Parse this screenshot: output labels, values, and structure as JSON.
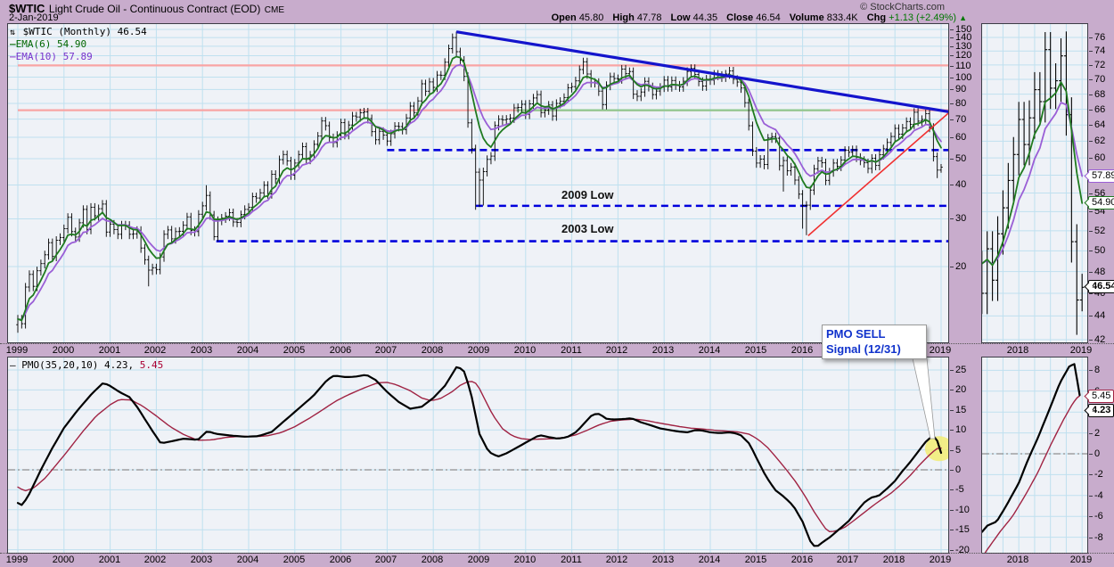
{
  "header": {
    "symbol": "$WTIC",
    "title": "Light Crude Oil - Continuous Contract (EOD)",
    "exchange": "CME",
    "copyright": "© StockCharts.com",
    "date": "2-Jan-2019",
    "quote": {
      "open_label": "Open",
      "open": "45.80",
      "high_label": "High",
      "high": "47.78",
      "low_label": "Low",
      "low": "44.35",
      "close_label": "Close",
      "close": "46.54",
      "volume_label": "Volume",
      "volume": "833.4K",
      "chg_label": "Chg",
      "chg": "+1.13 (+2.49%)",
      "chg_dir": "▲"
    }
  },
  "legend_main": {
    "icon": "⇅",
    "series": "$WTIC (Monthly)",
    "value": "46.54",
    "ema6": "EMA(6) 54.90",
    "ema10": "EMA(10) 57.89"
  },
  "legend_pmo": {
    "label": "— PMO(35,20,10)",
    "value": "4.23,",
    "signal": "5.45"
  },
  "annotations": {
    "low2009": "2009 Low",
    "low2003": "2003 Low",
    "pmo_sell_line1": "PMO SELL",
    "pmo_sell_line2": "Signal (12/31)"
  },
  "callouts": {
    "ema10": "57.89",
    "ema6": "54.90",
    "close": "46.54",
    "pmo_signal": "5.45",
    "pmo": "4.23"
  },
  "colors": {
    "page_bg": "#C8ACCC",
    "plot_bg": "#EFF2F7",
    "grid": "#BFE0EF",
    "bars": "#000000",
    "ema6": "#1F7A1F",
    "ema10": "#9A5FD6",
    "trend_blue": "#1414CC",
    "support_dashed_blue": "#0000DD",
    "resistance_pink": "#F9A4A4",
    "support_green": "#8FC98F",
    "trend_red": "#F03030",
    "pmo_line": "#000000",
    "pmo_signal": "#A02343",
    "zero_line": "#777777",
    "signal_highlight": "#F2EC6A",
    "callout_text_blue": "#1133CC",
    "chg_green": "#007700"
  },
  "axes": {
    "main_price_ticks": [
      150,
      140,
      130,
      120,
      110,
      100,
      90,
      80,
      70,
      60,
      50,
      40,
      30,
      20
    ],
    "pmo_ticks": [
      25,
      20,
      15,
      10,
      5,
      0,
      -5,
      -10,
      -15,
      -20
    ],
    "mini_price_ticks": [
      76,
      74,
      72,
      70,
      68,
      66,
      64,
      62,
      60,
      58,
      56,
      54,
      52,
      50,
      48,
      46,
      44,
      42
    ],
    "mini_pmo_ticks": [
      8,
      6,
      4,
      2,
      0,
      -2,
      -4,
      -6,
      -8
    ],
    "years_main": [
      "1999",
      "2000",
      "2001",
      "2002",
      "2003",
      "2004",
      "2005",
      "2006",
      "2007",
      "2008",
      "2009",
      "2010",
      "2011",
      "2012",
      "2013",
      "2014",
      "2015",
      "2016",
      "2017",
      "2018",
      "2019"
    ],
    "years_mini": [
      "2018",
      "2019"
    ]
  },
  "chart_data": {
    "type": "ohlc+line",
    "title": "$WTIC Light Crude Oil - Continuous Contract (EOD) CME, Monthly, 1999-2019, log scale",
    "price": {
      "start": "1999-01",
      "interval": "monthly",
      "log_scale": true,
      "ylim": [
        10.5,
        152
      ],
      "xlim": [
        1999.0,
        2019.3
      ],
      "last_bar": {
        "open": 45.8,
        "high": 47.78,
        "low": 44.35,
        "close": 46.54
      },
      "closes": [
        12.8,
        12.3,
        16.8,
        18.7,
        16.9,
        19.3,
        20.5,
        22.1,
        24.5,
        21.8,
        25.0,
        25.6,
        27.6,
        30.4,
        26.9,
        25.7,
        29.0,
        32.5,
        27.4,
        33.1,
        30.8,
        32.7,
        34.0,
        26.8,
        28.7,
        27.4,
        26.3,
        28.5,
        28.4,
        26.3,
        26.4,
        27.2,
        23.4,
        21.2,
        19.4,
        19.8,
        19.5,
        21.7,
        26.3,
        27.3,
        25.3,
        26.9,
        27.0,
        28.4,
        30.5,
        27.2,
        26.9,
        31.2,
        33.5,
        36.6,
        31.0,
        25.8,
        29.6,
        30.2,
        30.7,
        31.6,
        29.2,
        29.1,
        31.1,
        32.5,
        33.1,
        36.2,
        35.8,
        37.4,
        39.9,
        37.1,
        43.8,
        42.1,
        49.6,
        51.8,
        49.1,
        43.5,
        48.2,
        51.8,
        55.4,
        49.7,
        51.6,
        56.5,
        60.6,
        68.9,
        66.2,
        59.8,
        57.3,
        61.0,
        67.9,
        61.4,
        66.6,
        71.9,
        71.3,
        73.9,
        74.4,
        70.3,
        62.9,
        58.7,
        63.1,
        61.1,
        58.1,
        61.8,
        65.9,
        65.7,
        64.0,
        70.7,
        78.2,
        74.0,
        81.7,
        94.5,
        88.7,
        96.0,
        91.7,
        101.8,
        101.6,
        113.5,
        127.4,
        140.0,
        124.1,
        115.5,
        100.6,
        67.8,
        54.4,
        44.6,
        41.7,
        44.8,
        49.7,
        51.1,
        66.3,
        69.9,
        69.5,
        70.0,
        70.6,
        77.0,
        77.3,
        79.4,
        72.9,
        79.7,
        83.8,
        86.2,
        74.0,
        75.6,
        78.9,
        71.9,
        80.0,
        81.4,
        84.1,
        91.4,
        92.2,
        96.9,
        106.7,
        113.9,
        102.7,
        95.4,
        95.7,
        88.8,
        79.2,
        93.2,
        100.4,
        98.8,
        98.5,
        107.1,
        103.0,
        104.9,
        86.5,
        85.0,
        88.1,
        96.5,
        92.2,
        86.2,
        88.9,
        91.8,
        97.5,
        92.1,
        97.2,
        93.5,
        92.0,
        96.6,
        105.0,
        107.7,
        102.3,
        96.4,
        92.7,
        98.4,
        97.5,
        102.6,
        101.6,
        100.0,
        102.7,
        105.4,
        98.2,
        95.9,
        91.2,
        80.5,
        66.2,
        53.3,
        48.2,
        49.8,
        47.6,
        59.6,
        60.3,
        59.5,
        47.1,
        49.2,
        45.1,
        46.6,
        41.7,
        37.0,
        33.6,
        33.7,
        38.3,
        45.9,
        49.1,
        48.3,
        41.6,
        44.7,
        48.2,
        46.9,
        49.4,
        53.7,
        52.8,
        54.0,
        50.6,
        49.3,
        48.3,
        46.0,
        50.2,
        47.2,
        51.7,
        54.4,
        57.4,
        60.4,
        64.7,
        61.6,
        64.9,
        68.6,
        67.0,
        74.2,
        68.8,
        69.8,
        73.3,
        65.3,
        50.9,
        45.4,
        46.54
      ],
      "first_open": 12.2,
      "hl_overrides": {
        "1999-01": {
          "l": 11.4
        },
        "2001-11": {
          "l": 16.9
        },
        "2003-02": {
          "h": 39.9
        },
        "2003-04": {
          "l": 25.0
        },
        "2008-07": {
          "h": 147.3
        },
        "2008-12": {
          "l": 32.4
        },
        "2009-01": {
          "l": 33.2
        },
        "2009-02": {
          "l": 33.6
        },
        "2015-08": {
          "l": 37.8
        },
        "2016-01": {
          "l": 27.6
        },
        "2016-02": {
          "l": 26.1
        },
        "2018-10": {
          "h": 76.9
        },
        "2018-12": {
          "l": 42.4
        },
        "2019-01": {
          "h": 47.8,
          "l": 44.4
        }
      },
      "ema_periods": [
        6,
        10
      ],
      "overlays": {
        "resistance_lines": [
          {
            "level": 110.5,
            "from": 1999.0,
            "to": 2019.3,
            "style": "pink"
          },
          {
            "level": 75.5,
            "from": 1999.0,
            "to": 2019.3,
            "style": "pink"
          },
          {
            "level": 75.5,
            "from": 2009.8,
            "to": 2016.6,
            "style": "green"
          }
        ],
        "support_dashed": [
          {
            "level": 53.8,
            "from": 2007.0,
            "to": 2019.3
          },
          {
            "level": 33.5,
            "from": 2008.92,
            "to": 2019.3
          },
          {
            "level": 24.8,
            "from": 2003.3,
            "to": 2019.3
          }
        ],
        "trend_blue": {
          "t1": 2008.5,
          "p1": 147.0,
          "t2": 2019.7,
          "p2": 72.0
        },
        "trend_red": {
          "t1": 2016.12,
          "p1": 26.0,
          "t2": 2019.25,
          "p2": 76.0
        }
      }
    },
    "pmo": {
      "params": [
        35,
        20,
        10
      ],
      "current": 4.23,
      "signal_current": 5.45,
      "ylim": [
        -22,
        27
      ],
      "zero_line": 0,
      "pmo_knots": [
        [
          1999.0,
          -8.3
        ],
        [
          1999.1,
          -8.9
        ],
        [
          1999.25,
          -6
        ],
        [
          1999.5,
          0
        ],
        [
          1999.75,
          5.5
        ],
        [
          2000.0,
          10.5
        ],
        [
          2000.3,
          15
        ],
        [
          2000.6,
          19
        ],
        [
          2000.85,
          21.8
        ],
        [
          2001.0,
          21
        ],
        [
          2001.2,
          19.5
        ],
        [
          2001.42,
          18.2
        ],
        [
          2001.6,
          15.5
        ],
        [
          2001.9,
          10
        ],
        [
          2002.1,
          6.6
        ],
        [
          2002.35,
          7.2
        ],
        [
          2002.6,
          7.8
        ],
        [
          2002.9,
          7.5
        ],
        [
          2003.1,
          9.7
        ],
        [
          2003.3,
          9.0
        ],
        [
          2003.6,
          8.6
        ],
        [
          2003.9,
          8.3
        ],
        [
          2004.2,
          8.4
        ],
        [
          2004.5,
          9.5
        ],
        [
          2004.8,
          12.5
        ],
        [
          2005.1,
          15.5
        ],
        [
          2005.4,
          18.5
        ],
        [
          2005.7,
          22.5
        ],
        [
          2005.85,
          23.6
        ],
        [
          2006.1,
          23.2
        ],
        [
          2006.3,
          23.3
        ],
        [
          2006.55,
          23.8
        ],
        [
          2006.75,
          22.5
        ],
        [
          2007.0,
          19.5
        ],
        [
          2007.25,
          17
        ],
        [
          2007.5,
          15.3
        ],
        [
          2007.75,
          15.8
        ],
        [
          2008.0,
          18
        ],
        [
          2008.25,
          21
        ],
        [
          2008.5,
          25.7
        ],
        [
          2008.65,
          25.2
        ],
        [
          2008.8,
          20
        ],
        [
          2009.0,
          9
        ],
        [
          2009.2,
          4.5
        ],
        [
          2009.4,
          3.3
        ],
        [
          2009.6,
          4.2
        ],
        [
          2009.8,
          5.5
        ],
        [
          2010.0,
          6.8
        ],
        [
          2010.3,
          8.7
        ],
        [
          2010.5,
          8.2
        ],
        [
          2010.7,
          7.8
        ],
        [
          2010.9,
          8.2
        ],
        [
          2011.1,
          9.5
        ],
        [
          2011.3,
          12
        ],
        [
          2011.45,
          13.9
        ],
        [
          2011.6,
          14
        ],
        [
          2011.75,
          12.8
        ],
        [
          2011.9,
          12.6
        ],
        [
          2012.1,
          12.7
        ],
        [
          2012.3,
          12.9
        ],
        [
          2012.5,
          11.9
        ],
        [
          2012.7,
          11.2
        ],
        [
          2012.9,
          10.4
        ],
        [
          2013.1,
          10
        ],
        [
          2013.3,
          9.6
        ],
        [
          2013.5,
          9.4
        ],
        [
          2013.7,
          10
        ],
        [
          2013.85,
          9.8
        ],
        [
          2014.0,
          9.4
        ],
        [
          2014.2,
          9.2
        ],
        [
          2014.45,
          9.4
        ],
        [
          2014.65,
          8.8
        ],
        [
          2014.85,
          6.5
        ],
        [
          2015.0,
          3
        ],
        [
          2015.2,
          -1.5
        ],
        [
          2015.4,
          -5
        ],
        [
          2015.6,
          -6.8
        ],
        [
          2015.8,
          -9
        ],
        [
          2016.0,
          -13
        ],
        [
          2016.2,
          -18.8
        ],
        [
          2016.3,
          -19.3
        ],
        [
          2016.45,
          -18
        ],
        [
          2016.6,
          -16.8
        ],
        [
          2016.8,
          -14.8
        ],
        [
          2017.0,
          -12.8
        ],
        [
          2017.2,
          -10
        ],
        [
          2017.35,
          -8
        ],
        [
          2017.5,
          -6.9
        ],
        [
          2017.65,
          -6.5
        ],
        [
          2017.8,
          -5
        ],
        [
          2018.0,
          -2.8
        ],
        [
          2018.15,
          -0.5
        ],
        [
          2018.3,
          1.5
        ],
        [
          2018.5,
          4.5
        ],
        [
          2018.65,
          6.8
        ],
        [
          2018.8,
          8.4
        ],
        [
          2018.88,
          8.6
        ],
        [
          2019.0,
          4.23
        ]
      ],
      "signal_knots": [
        [
          1999.0,
          -4.3
        ],
        [
          1999.15,
          -5.3
        ],
        [
          1999.35,
          -4.5
        ],
        [
          1999.6,
          -2
        ],
        [
          1999.85,
          1.5
        ],
        [
          2000.1,
          5
        ],
        [
          2000.4,
          9.5
        ],
        [
          2000.7,
          13.5
        ],
        [
          2001.0,
          16.3
        ],
        [
          2001.2,
          17.6
        ],
        [
          2001.45,
          17.5
        ],
        [
          2001.7,
          16
        ],
        [
          2002.0,
          13.5
        ],
        [
          2002.3,
          10.8
        ],
        [
          2002.6,
          8.8
        ],
        [
          2002.9,
          7.4
        ],
        [
          2003.2,
          7.5
        ],
        [
          2003.5,
          8.1
        ],
        [
          2003.8,
          8.4
        ],
        [
          2004.1,
          8.3
        ],
        [
          2004.4,
          8.5
        ],
        [
          2004.7,
          9.3
        ],
        [
          2005.0,
          10.8
        ],
        [
          2005.3,
          12.8
        ],
        [
          2005.6,
          15
        ],
        [
          2005.9,
          17.3
        ],
        [
          2006.2,
          19
        ],
        [
          2006.5,
          20.5
        ],
        [
          2006.8,
          21.8
        ],
        [
          2007.0,
          21.9
        ],
        [
          2007.2,
          21.3
        ],
        [
          2007.5,
          19.8
        ],
        [
          2007.75,
          18
        ],
        [
          2007.95,
          17.3
        ],
        [
          2008.15,
          17.8
        ],
        [
          2008.4,
          19.5
        ],
        [
          2008.6,
          21.3
        ],
        [
          2008.8,
          22.3
        ],
        [
          2008.95,
          21.5
        ],
        [
          2009.1,
          18
        ],
        [
          2009.3,
          13.5
        ],
        [
          2009.5,
          10.3
        ],
        [
          2009.7,
          8.6
        ],
        [
          2009.9,
          7.8
        ],
        [
          2010.1,
          7.6
        ],
        [
          2010.35,
          7.7
        ],
        [
          2010.6,
          7.8
        ],
        [
          2010.85,
          8.1
        ],
        [
          2011.1,
          8.8
        ],
        [
          2011.35,
          10
        ],
        [
          2011.6,
          11.3
        ],
        [
          2011.85,
          12.2
        ],
        [
          2012.1,
          12.5
        ],
        [
          2012.35,
          12.7
        ],
        [
          2012.6,
          12.4
        ],
        [
          2012.85,
          11.8
        ],
        [
          2013.1,
          11.3
        ],
        [
          2013.35,
          10.8
        ],
        [
          2013.6,
          10.4
        ],
        [
          2013.85,
          10.2
        ],
        [
          2014.1,
          9.9
        ],
        [
          2014.35,
          9.7
        ],
        [
          2014.6,
          9.5
        ],
        [
          2014.85,
          8.9
        ],
        [
          2015.05,
          7.5
        ],
        [
          2015.25,
          5.5
        ],
        [
          2015.45,
          2.8
        ],
        [
          2015.65,
          0
        ],
        [
          2015.85,
          -3
        ],
        [
          2016.05,
          -6.5
        ],
        [
          2016.25,
          -10.5
        ],
        [
          2016.45,
          -14
        ],
        [
          2016.55,
          -15.5
        ],
        [
          2016.7,
          -15.4
        ],
        [
          2016.9,
          -14.5
        ],
        [
          2017.1,
          -12.8
        ],
        [
          2017.3,
          -11
        ],
        [
          2017.5,
          -9.2
        ],
        [
          2017.7,
          -7.5
        ],
        [
          2017.9,
          -6
        ],
        [
          2018.1,
          -4
        ],
        [
          2018.3,
          -1.8
        ],
        [
          2018.5,
          0.8
        ],
        [
          2018.7,
          3.2
        ],
        [
          2018.85,
          4.8
        ],
        [
          2018.95,
          5.6
        ],
        [
          2019.0,
          5.45
        ]
      ],
      "sell_signal": {
        "t": 2018.96,
        "value": 5.3,
        "date": "12/31"
      }
    },
    "mini_panels": {
      "note": "right-hand zoom panels reuse tail of main series",
      "start": "2017-06",
      "xlim": [
        2017.42,
        2019.08
      ],
      "price_ylim": [
        41.5,
        77.5
      ],
      "pmo_ylim": [
        -8.6,
        9.4
      ]
    }
  }
}
